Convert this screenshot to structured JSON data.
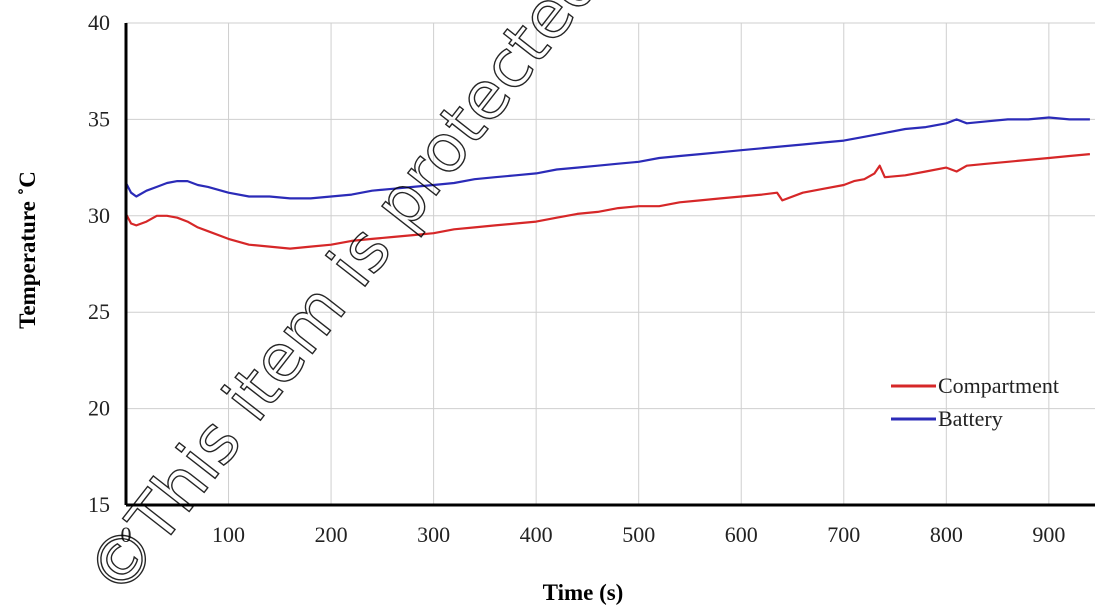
{
  "chart_data": {
    "type": "line",
    "xlabel": "Time (s)",
    "ylabel": "Temperature ˚C",
    "xlim": [
      0,
      945
    ],
    "ylim": [
      15,
      40
    ],
    "x_ticks": [
      0,
      100,
      200,
      300,
      400,
      500,
      600,
      700,
      800,
      900
    ],
    "y_ticks": [
      15,
      20,
      25,
      30,
      35,
      40
    ],
    "grid": true,
    "legend_position": "lower-right",
    "series": [
      {
        "name": "Compartment",
        "color": "#d62728",
        "x": [
          0,
          5,
          10,
          20,
          30,
          40,
          50,
          60,
          70,
          80,
          100,
          120,
          140,
          160,
          180,
          200,
          220,
          240,
          260,
          280,
          300,
          320,
          340,
          360,
          380,
          400,
          420,
          440,
          460,
          480,
          500,
          520,
          540,
          560,
          580,
          600,
          620,
          635,
          640,
          660,
          680,
          700,
          710,
          720,
          730,
          735,
          740,
          760,
          780,
          800,
          810,
          820,
          840,
          860,
          880,
          900,
          920,
          940
        ],
        "values": [
          30.1,
          29.6,
          29.5,
          29.7,
          30.0,
          30.0,
          29.9,
          29.7,
          29.4,
          29.2,
          28.8,
          28.5,
          28.4,
          28.3,
          28.4,
          28.5,
          28.7,
          28.8,
          28.9,
          29.0,
          29.1,
          29.3,
          29.4,
          29.5,
          29.6,
          29.7,
          29.9,
          30.1,
          30.2,
          30.4,
          30.5,
          30.5,
          30.7,
          30.8,
          30.9,
          31.0,
          31.1,
          31.2,
          30.8,
          31.2,
          31.4,
          31.6,
          31.8,
          31.9,
          32.2,
          32.6,
          32.0,
          32.1,
          32.3,
          32.5,
          32.3,
          32.6,
          32.7,
          32.8,
          32.9,
          33.0,
          33.1,
          33.2
        ]
      },
      {
        "name": "Battery",
        "color": "#2b2bb8",
        "x": [
          0,
          5,
          10,
          20,
          30,
          40,
          50,
          60,
          70,
          80,
          100,
          120,
          140,
          160,
          180,
          200,
          220,
          240,
          260,
          280,
          300,
          320,
          340,
          360,
          380,
          400,
          420,
          440,
          460,
          480,
          500,
          520,
          540,
          560,
          580,
          600,
          620,
          640,
          660,
          680,
          700,
          720,
          740,
          760,
          780,
          800,
          810,
          820,
          840,
          860,
          880,
          900,
          920,
          940
        ],
        "values": [
          31.7,
          31.2,
          31.0,
          31.3,
          31.5,
          31.7,
          31.8,
          31.8,
          31.6,
          31.5,
          31.2,
          31.0,
          31.0,
          30.9,
          30.9,
          31.0,
          31.1,
          31.3,
          31.4,
          31.5,
          31.6,
          31.7,
          31.9,
          32.0,
          32.1,
          32.2,
          32.4,
          32.5,
          32.6,
          32.7,
          32.8,
          33.0,
          33.1,
          33.2,
          33.3,
          33.4,
          33.5,
          33.6,
          33.7,
          33.8,
          33.9,
          34.1,
          34.3,
          34.5,
          34.6,
          34.8,
          35.0,
          34.8,
          34.9,
          35.0,
          35.0,
          35.1,
          35.0,
          35.0
        ]
      }
    ]
  },
  "watermark": "©This item is protected by original"
}
